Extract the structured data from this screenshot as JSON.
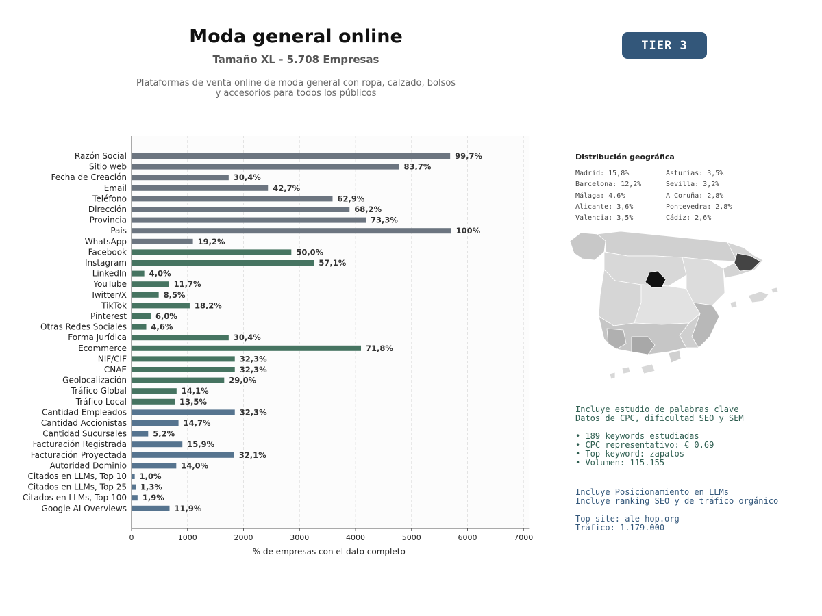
{
  "header": {
    "title": "Moda general online",
    "subtitle": "Tamaño XL - 5.708 Empresas",
    "description_line1": "Plataformas de venta online de moda general con ropa, calzado, bolsos",
    "description_line2": "y accesorios para todos los públicos",
    "tier": "TIER 3"
  },
  "colors": {
    "group1": "#6c7580",
    "group2": "#467461",
    "group3": "#56748f",
    "badge": "#33577a",
    "madrid": "#111111",
    "barcelona": "#444444"
  },
  "chart_data": {
    "type": "bar",
    "orientation": "horizontal",
    "xlabel": "% de empresas con el dato completo",
    "xlim": [
      0,
      7100
    ],
    "xticks": [
      0,
      1000,
      2000,
      3000,
      4000,
      5000,
      6000,
      7000
    ],
    "grid": "vertical dashed",
    "categories": [
      "Razón Social",
      "Sitio web",
      "Fecha de Creación",
      "Email",
      "Teléfono",
      "Dirección",
      "Provincia",
      "País",
      "WhatsApp",
      "Facebook",
      "Instagram",
      "LinkedIn",
      "YouTube",
      "Twitter/X",
      "TikTok",
      "Pinterest",
      "Otras Redes Sociales",
      "Forma Jurídica",
      "Ecommerce",
      "NIF/CIF",
      "CNAE",
      "Geolocalización",
      "Tráfico Global",
      "Tráfico Local",
      "Cantidad Empleados",
      "Cantidad Accionistas",
      "Cantidad Sucursales",
      "Facturación Registrada",
      "Facturación Proyectada",
      "Autoridad Dominio",
      "Citados en LLMs, Top 10",
      "Citados en LLMs, Top 25",
      "Citados en LLMs, Top 100",
      "Google AI Overviews"
    ],
    "values": [
      5690,
      4777,
      1735,
      2437,
      3590,
      3893,
      4184,
      5708,
      1096,
      2854,
      3259,
      228,
      668,
      485,
      1039,
      342,
      263,
      1735,
      4098,
      1844,
      1844,
      1655,
      805,
      771,
      1844,
      839,
      297,
      908,
      1832,
      799,
      57,
      74,
      108,
      679
    ],
    "data_labels": [
      "99,7%",
      "83,7%",
      "30,4%",
      "42,7%",
      "62,9%",
      "68,2%",
      "73,3%",
      "100%",
      "19,2%",
      "50,0%",
      "57,1%",
      "4,0%",
      "11,7%",
      "8,5%",
      "18,2%",
      "6,0%",
      "4,6%",
      "30,4%",
      "71,8%",
      "32,3%",
      "32,3%",
      "29,0%",
      "14,1%",
      "13,5%",
      "32,3%",
      "14,7%",
      "5,2%",
      "15,9%",
      "32,1%",
      "14,0%",
      "1,0%",
      "1,3%",
      "1,9%",
      "11,9%"
    ],
    "bar_groups": [
      "group1",
      "group1",
      "group1",
      "group1",
      "group1",
      "group1",
      "group1",
      "group1",
      "group1",
      "group2",
      "group2",
      "group2",
      "group2",
      "group2",
      "group2",
      "group2",
      "group2",
      "group2",
      "group2",
      "group2",
      "group2",
      "group2",
      "group2",
      "group2",
      "group3",
      "group3",
      "group3",
      "group3",
      "group3",
      "group3",
      "group3",
      "group3",
      "group3",
      "group3"
    ]
  },
  "geo": {
    "title": "Distribución geográfica",
    "items": [
      "Madrid: 15,8%",
      "Asturias: 3,5%",
      "Barcelona: 12,2%",
      "Sevilla: 3,2%",
      "Málaga: 4,6%",
      "A Coruña: 2,8%",
      "Alicante: 3,6%",
      "Pontevedra: 2,8%",
      "Valencia: 3,5%",
      "Cádiz: 2,6%"
    ]
  },
  "keywords": {
    "line1": "Incluye estudio de palabras clave",
    "line2": "Datos de CPC, dificultad SEO y SEM",
    "bullet1": "• 189 keywords estudiadas",
    "bullet2": "• CPC representativo: € 0.69",
    "bullet3": "• Top keyword: zapatos",
    "bullet4": "• Volumen: 115.155"
  },
  "llm": {
    "line1": "Incluye Posicionamiento en LLMs",
    "line2": "Incluye ranking SEO y de tráfico orgánico",
    "top_site": "Top site: ale-hop.org",
    "traffic": "Tráfico: 1.179.000"
  }
}
